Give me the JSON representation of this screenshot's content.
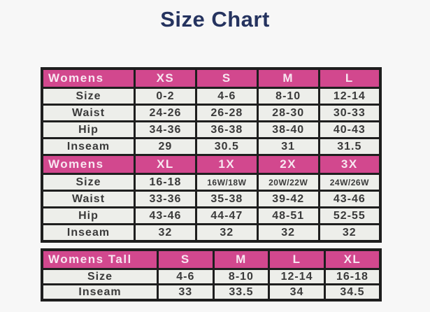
{
  "page": {
    "title": "Size Chart"
  },
  "colors": {
    "page_bg": "#f7f7f7",
    "title": "#25335f",
    "header_bg": "#d2488e",
    "header_text": "#f8e7f1",
    "cell_bg": "#edeeea",
    "cell_text": "#3a3a3a",
    "border": "#1e1e1e"
  },
  "size_chart": {
    "tables": [
      {
        "name": "womens-regular",
        "sections": [
          {
            "header": [
              "Womens",
              "XS",
              "S",
              "M",
              "L"
            ],
            "rows": [
              [
                "Size",
                "0-2",
                "4-6",
                "8-10",
                "12-14"
              ],
              [
                "Waist",
                "24-26",
                "26-28",
                "28-30",
                "30-33"
              ],
              [
                "Hip",
                "34-36",
                "36-38",
                "38-40",
                "40-43"
              ],
              [
                "Inseam",
                "29",
                "30.5",
                "31",
                "31.5"
              ]
            ]
          },
          {
            "header": [
              "Womens",
              "XL",
              "1X",
              "2X",
              "3X"
            ],
            "rows": [
              [
                "Size",
                "16-18",
                "16W/18W",
                "20W/22W",
                "24W/26W"
              ],
              [
                "Waist",
                "33-36",
                "35-38",
                "39-42",
                "43-46"
              ],
              [
                "Hip",
                "43-46",
                "44-47",
                "48-51",
                "52-55"
              ],
              [
                "Inseam",
                "32",
                "32",
                "32",
                "32"
              ]
            ]
          }
        ]
      },
      {
        "name": "womens-tall",
        "sections": [
          {
            "header": [
              "Womens Tall",
              "S",
              "M",
              "L",
              "XL"
            ],
            "rows": [
              [
                "Size",
                "4-6",
                "8-10",
                "12-14",
                "16-18"
              ],
              [
                "Inseam",
                "33",
                "33.5",
                "34",
                "34.5"
              ]
            ]
          }
        ]
      }
    ]
  }
}
